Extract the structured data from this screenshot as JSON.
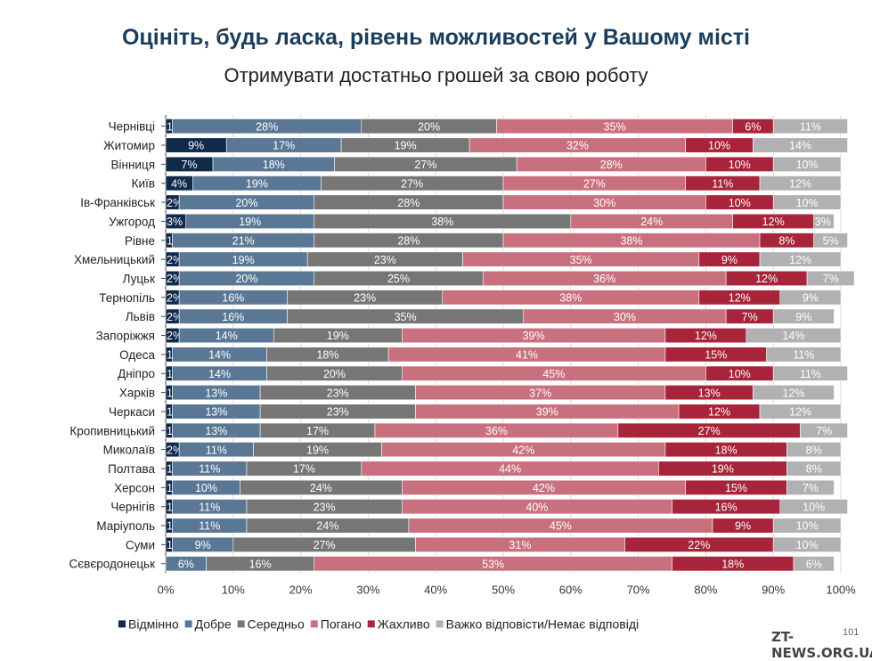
{
  "chart_data": {
    "type": "bar",
    "orientation": "horizontal",
    "stacked": true,
    "title": "Оцініть, будь ласка, рівень можливостей у Вашому місті",
    "subtitle": "Отримувати достатньо грошей за свою роботу",
    "xlim": [
      0,
      100
    ],
    "x_ticks": [
      "0%",
      "10%",
      "20%",
      "30%",
      "40%",
      "50%",
      "60%",
      "70%",
      "80%",
      "90%",
      "100%"
    ],
    "grid": true,
    "legend_position": "bottom",
    "categories": [
      "Чернівці",
      "Житомир",
      "Вінниця",
      "Київ",
      "Ів-Франківськ",
      "Ужгород",
      "Рівне",
      "Хмельницький",
      "Луцьк",
      "Тернопіль",
      "Львів",
      "Запоріжжя",
      "Одеса",
      "Дніпро",
      "Харків",
      "Черкаси",
      "Кропивницький",
      "Миколаїв",
      "Полтава",
      "Херсон",
      "Чернігів",
      "Маріуполь",
      "Суми",
      "Сєвєродонецьк"
    ],
    "series": [
      {
        "name": "Відмінно",
        "color": "#0f2a4a",
        "values": [
          1,
          9,
          7,
          4,
          2,
          3,
          1,
          2,
          2,
          2,
          2,
          2,
          1,
          1,
          1,
          1,
          1,
          2,
          1,
          1,
          1,
          1,
          1,
          0
        ]
      },
      {
        "name": "Добре",
        "color": "#5a7895",
        "values": [
          28,
          17,
          18,
          19,
          20,
          19,
          21,
          19,
          20,
          16,
          16,
          14,
          14,
          14,
          13,
          13,
          13,
          11,
          11,
          10,
          11,
          11,
          9,
          6
        ]
      },
      {
        "name": "Середньо",
        "color": "#767676",
        "values": [
          20,
          19,
          27,
          27,
          28,
          38,
          28,
          23,
          25,
          23,
          35,
          19,
          18,
          20,
          23,
          23,
          17,
          19,
          17,
          24,
          23,
          24,
          27,
          16
        ]
      },
      {
        "name": "Погано",
        "color": "#c9707e",
        "values": [
          35,
          32,
          28,
          27,
          30,
          24,
          38,
          35,
          36,
          38,
          30,
          39,
          41,
          45,
          37,
          39,
          36,
          42,
          44,
          42,
          40,
          45,
          31,
          53
        ]
      },
      {
        "name": "Жахливо",
        "color": "#a7243a",
        "values": [
          6,
          10,
          10,
          11,
          10,
          12,
          8,
          9,
          12,
          12,
          7,
          12,
          15,
          10,
          13,
          12,
          27,
          18,
          19,
          15,
          16,
          9,
          22,
          18
        ]
      },
      {
        "name": "Важко відповісти/Немає відповіді",
        "color": "#b1b1b4",
        "values": [
          11,
          14,
          10,
          12,
          10,
          3,
          5,
          12,
          7,
          9,
          9,
          14,
          11,
          11,
          12,
          12,
          7,
          8,
          8,
          7,
          10,
          10,
          10,
          6
        ]
      }
    ]
  },
  "watermark": "ZT-NEWS.ORG.UA",
  "page_number": "101"
}
